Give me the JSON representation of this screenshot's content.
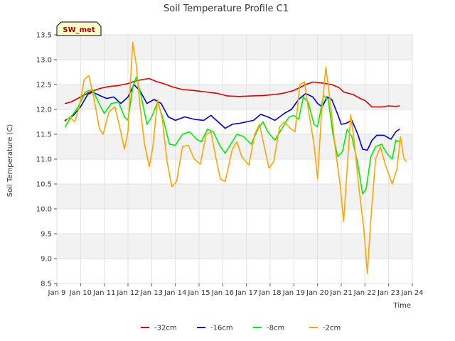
{
  "chart_data": {
    "type": "line",
    "title": "Soil Temperature Profile C1",
    "xlabel": "Time",
    "ylabel": "Soil Temperature (C)",
    "ylim": [
      8.5,
      13.5
    ],
    "xlim": [
      9,
      24
    ],
    "yticks": [
      "8.5",
      "9.0",
      "9.5",
      "10.0",
      "10.5",
      "11.0",
      "11.5",
      "12.0",
      "12.5",
      "13.0",
      "13.5"
    ],
    "xticks": [
      {
        "label": "Jan 9",
        "value": 9
      },
      {
        "label": "Jan 10",
        "value": 10
      },
      {
        "label": "Jan 11",
        "value": 11
      },
      {
        "label": "Jan 12",
        "value": 12
      },
      {
        "label": "Jan 13",
        "value": 13
      },
      {
        "label": "Jan 14",
        "value": 14
      },
      {
        "label": "Jan 15",
        "value": 15
      },
      {
        "label": "Jan 16",
        "value": 16
      },
      {
        "label": "Jan 17",
        "value": 17
      },
      {
        "label": "Jan 18",
        "value": 18
      },
      {
        "label": "Jan 19",
        "value": 19
      },
      {
        "label": "Jan 20",
        "value": 20
      },
      {
        "label": "Jan 21",
        "value": 21
      },
      {
        "label": "Jan 22",
        "value": 22
      },
      {
        "label": "Jan 23",
        "value": 23
      },
      {
        "label": "Jan 24",
        "value": 24
      }
    ],
    "station_label": "SW_met",
    "legend_position": "bottom-center",
    "series": [
      {
        "name": "-32cm",
        "color": "#dd0000",
        "points": [
          [
            9.35,
            12.12
          ],
          [
            9.6,
            12.15
          ],
          [
            10.0,
            12.25
          ],
          [
            10.4,
            12.35
          ],
          [
            10.8,
            12.42
          ],
          [
            11.2,
            12.46
          ],
          [
            11.6,
            12.48
          ],
          [
            12.0,
            12.52
          ],
          [
            12.3,
            12.57
          ],
          [
            12.6,
            12.6
          ],
          [
            12.9,
            12.62
          ],
          [
            13.2,
            12.56
          ],
          [
            13.5,
            12.52
          ],
          [
            13.9,
            12.45
          ],
          [
            14.3,
            12.4
          ],
          [
            14.8,
            12.38
          ],
          [
            15.3,
            12.35
          ],
          [
            15.8,
            12.32
          ],
          [
            16.2,
            12.27
          ],
          [
            16.7,
            12.26
          ],
          [
            17.2,
            12.27
          ],
          [
            17.7,
            12.28
          ],
          [
            18.2,
            12.3
          ],
          [
            18.6,
            12.33
          ],
          [
            19.0,
            12.38
          ],
          [
            19.5,
            12.5
          ],
          [
            19.8,
            12.55
          ],
          [
            20.2,
            12.53
          ],
          [
            20.6,
            12.5
          ],
          [
            20.9,
            12.44
          ],
          [
            21.1,
            12.35
          ],
          [
            21.5,
            12.3
          ],
          [
            21.8,
            12.22
          ],
          [
            22.0,
            12.18
          ],
          [
            22.3,
            12.05
          ],
          [
            22.7,
            12.05
          ],
          [
            23.0,
            12.07
          ],
          [
            23.3,
            12.06
          ],
          [
            23.45,
            12.07
          ]
        ]
      },
      {
        "name": "-16cm",
        "color": "#0000cc",
        "points": [
          [
            9.35,
            11.78
          ],
          [
            9.7,
            11.88
          ],
          [
            10.0,
            12.05
          ],
          [
            10.3,
            12.3
          ],
          [
            10.5,
            12.35
          ],
          [
            10.8,
            12.28
          ],
          [
            11.1,
            12.22
          ],
          [
            11.4,
            12.25
          ],
          [
            11.7,
            12.12
          ],
          [
            12.0,
            12.25
          ],
          [
            12.25,
            12.5
          ],
          [
            12.5,
            12.38
          ],
          [
            12.8,
            12.12
          ],
          [
            13.1,
            12.2
          ],
          [
            13.4,
            12.12
          ],
          [
            13.7,
            11.85
          ],
          [
            14.0,
            11.78
          ],
          [
            14.4,
            11.85
          ],
          [
            14.8,
            11.8
          ],
          [
            15.2,
            11.78
          ],
          [
            15.5,
            11.88
          ],
          [
            15.8,
            11.75
          ],
          [
            16.1,
            11.62
          ],
          [
            16.4,
            11.7
          ],
          [
            16.7,
            11.72
          ],
          [
            17.0,
            11.75
          ],
          [
            17.3,
            11.78
          ],
          [
            17.6,
            11.9
          ],
          [
            17.9,
            11.85
          ],
          [
            18.2,
            11.78
          ],
          [
            18.6,
            11.92
          ],
          [
            18.9,
            12.0
          ],
          [
            19.2,
            12.2
          ],
          [
            19.5,
            12.32
          ],
          [
            19.8,
            12.25
          ],
          [
            20.0,
            12.12
          ],
          [
            20.2,
            12.05
          ],
          [
            20.4,
            12.25
          ],
          [
            20.6,
            12.2
          ],
          [
            20.85,
            11.9
          ],
          [
            21.0,
            11.7
          ],
          [
            21.2,
            11.72
          ],
          [
            21.45,
            11.78
          ],
          [
            21.7,
            11.5
          ],
          [
            21.9,
            11.2
          ],
          [
            22.1,
            11.18
          ],
          [
            22.3,
            11.38
          ],
          [
            22.5,
            11.48
          ],
          [
            22.8,
            11.48
          ],
          [
            23.1,
            11.4
          ],
          [
            23.3,
            11.55
          ],
          [
            23.45,
            11.6
          ]
        ]
      },
      {
        "name": "-8cm",
        "color": "#00ee00",
        "points": [
          [
            9.35,
            11.65
          ],
          [
            9.6,
            11.85
          ],
          [
            9.9,
            12.05
          ],
          [
            10.2,
            12.35
          ],
          [
            10.5,
            12.4
          ],
          [
            10.8,
            12.1
          ],
          [
            11.0,
            11.92
          ],
          [
            11.3,
            12.12
          ],
          [
            11.6,
            12.15
          ],
          [
            11.85,
            11.85
          ],
          [
            12.0,
            11.78
          ],
          [
            12.2,
            12.45
          ],
          [
            12.35,
            12.65
          ],
          [
            12.55,
            12.28
          ],
          [
            12.8,
            11.7
          ],
          [
            13.0,
            11.85
          ],
          [
            13.25,
            12.15
          ],
          [
            13.5,
            11.78
          ],
          [
            13.75,
            11.3
          ],
          [
            14.0,
            11.28
          ],
          [
            14.3,
            11.5
          ],
          [
            14.6,
            11.55
          ],
          [
            14.9,
            11.4
          ],
          [
            15.1,
            11.35
          ],
          [
            15.35,
            11.6
          ],
          [
            15.6,
            11.55
          ],
          [
            15.9,
            11.25
          ],
          [
            16.1,
            11.12
          ],
          [
            16.4,
            11.35
          ],
          [
            16.6,
            11.5
          ],
          [
            16.9,
            11.45
          ],
          [
            17.2,
            11.3
          ],
          [
            17.5,
            11.62
          ],
          [
            17.7,
            11.75
          ],
          [
            17.9,
            11.55
          ],
          [
            18.2,
            11.38
          ],
          [
            18.5,
            11.62
          ],
          [
            18.8,
            11.85
          ],
          [
            19.0,
            11.88
          ],
          [
            19.2,
            11.8
          ],
          [
            19.4,
            12.25
          ],
          [
            19.6,
            12.15
          ],
          [
            19.85,
            11.7
          ],
          [
            20.0,
            11.65
          ],
          [
            20.25,
            12.28
          ],
          [
            20.45,
            12.2
          ],
          [
            20.65,
            11.5
          ],
          [
            20.85,
            11.05
          ],
          [
            21.05,
            11.15
          ],
          [
            21.25,
            11.6
          ],
          [
            21.45,
            11.45
          ],
          [
            21.7,
            10.9
          ],
          [
            21.9,
            10.3
          ],
          [
            22.05,
            10.4
          ],
          [
            22.25,
            11.05
          ],
          [
            22.45,
            11.25
          ],
          [
            22.7,
            11.3
          ],
          [
            22.95,
            11.1
          ],
          [
            23.15,
            11.0
          ],
          [
            23.3,
            11.38
          ],
          [
            23.45,
            11.35
          ]
        ]
      },
      {
        "name": "-2cm",
        "color": "#ffa500",
        "points": [
          [
            9.35,
            11.75
          ],
          [
            9.55,
            11.85
          ],
          [
            9.75,
            11.75
          ],
          [
            9.95,
            12.05
          ],
          [
            10.15,
            12.6
          ],
          [
            10.35,
            12.68
          ],
          [
            10.55,
            12.25
          ],
          [
            10.8,
            11.6
          ],
          [
            10.95,
            11.5
          ],
          [
            11.2,
            11.95
          ],
          [
            11.45,
            12.05
          ],
          [
            11.65,
            11.65
          ],
          [
            11.85,
            11.2
          ],
          [
            12.0,
            11.55
          ],
          [
            12.1,
            12.5
          ],
          [
            12.2,
            13.35
          ],
          [
            12.35,
            12.9
          ],
          [
            12.5,
            12.1
          ],
          [
            12.7,
            11.3
          ],
          [
            12.9,
            10.85
          ],
          [
            13.05,
            11.25
          ],
          [
            13.25,
            12.2
          ],
          [
            13.45,
            11.8
          ],
          [
            13.65,
            10.95
          ],
          [
            13.85,
            10.45
          ],
          [
            14.05,
            10.55
          ],
          [
            14.3,
            11.25
          ],
          [
            14.55,
            11.28
          ],
          [
            14.8,
            11.0
          ],
          [
            15.05,
            10.9
          ],
          [
            15.3,
            11.5
          ],
          [
            15.5,
            11.55
          ],
          [
            15.7,
            11.05
          ],
          [
            15.9,
            10.6
          ],
          [
            16.1,
            10.55
          ],
          [
            16.4,
            11.2
          ],
          [
            16.6,
            11.35
          ],
          [
            16.8,
            11.05
          ],
          [
            17.1,
            10.88
          ],
          [
            17.35,
            11.5
          ],
          [
            17.55,
            11.7
          ],
          [
            17.75,
            11.25
          ],
          [
            17.95,
            10.82
          ],
          [
            18.15,
            10.95
          ],
          [
            18.4,
            11.65
          ],
          [
            18.6,
            11.75
          ],
          [
            18.85,
            11.62
          ],
          [
            19.05,
            11.55
          ],
          [
            19.25,
            12.5
          ],
          [
            19.45,
            12.55
          ],
          [
            19.65,
            11.88
          ],
          [
            19.85,
            11.3
          ],
          [
            20.0,
            10.6
          ],
          [
            20.15,
            11.8
          ],
          [
            20.35,
            12.85
          ],
          [
            20.55,
            12.1
          ],
          [
            20.75,
            11.2
          ],
          [
            20.95,
            10.5
          ],
          [
            21.1,
            9.75
          ],
          [
            21.25,
            10.8
          ],
          [
            21.4,
            11.9
          ],
          [
            21.55,
            11.35
          ],
          [
            21.75,
            10.4
          ],
          [
            21.95,
            9.6
          ],
          [
            22.1,
            8.7
          ],
          [
            22.25,
            9.8
          ],
          [
            22.45,
            11.0
          ],
          [
            22.65,
            11.25
          ],
          [
            22.85,
            10.9
          ],
          [
            23.0,
            10.7
          ],
          [
            23.15,
            10.5
          ],
          [
            23.35,
            10.8
          ],
          [
            23.5,
            11.45
          ],
          [
            23.65,
            11.0
          ],
          [
            23.75,
            10.95
          ]
        ]
      }
    ]
  }
}
